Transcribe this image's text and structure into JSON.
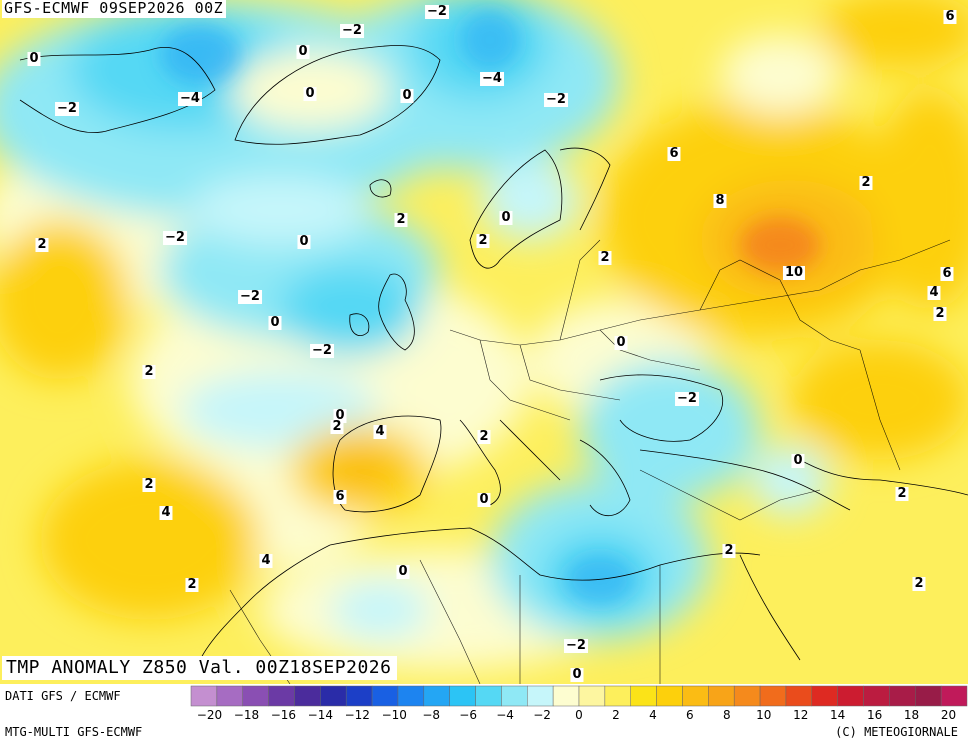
{
  "header": {
    "title_top": "GFS-ECMWF 09SEP2026 00Z",
    "title_bottom": "TMP ANOMALY Z850 Val. 00Z18SEP2026"
  },
  "footer": {
    "source": "DATI GFS / ECMWF",
    "model": "MTG-MULTI GFS-ECMWF",
    "copyright": "(C) METEOGIORNALE"
  },
  "legend": {
    "ticks": [
      "-20",
      "-18",
      "-16",
      "-14",
      "-12",
      "-10",
      "-8",
      "-6",
      "-4",
      "-2",
      "0",
      "2",
      "4",
      "6",
      "8",
      "10",
      "12",
      "14",
      "16",
      "18",
      "20"
    ],
    "colors": [
      "#c48fd0",
      "#a66cc2",
      "#8a4fb3",
      "#6b3aa5",
      "#4b2c9c",
      "#2a2ca8",
      "#1c3fc7",
      "#1960e3",
      "#1d84f0",
      "#24a6f4",
      "#2cc4f5",
      "#55d8f4",
      "#8fe8f5",
      "#c6f6fa",
      "#fdfdd0",
      "#fdf6a0",
      "#fdef5c",
      "#fbe318",
      "#fdd00c",
      "#fbbc14",
      "#f8a418",
      "#f58a1c",
      "#f16c1c",
      "#ea4c1c",
      "#de2a22",
      "#cc1c30",
      "#bb1c40",
      "#a81c48",
      "#981c48",
      "#c01a5a"
    ]
  },
  "labels": [
    {
      "id": "a1",
      "text": "-2"
    },
    {
      "id": "a2",
      "text": "-2"
    },
    {
      "id": "a3",
      "text": "6"
    },
    {
      "id": "a4",
      "text": "0"
    },
    {
      "id": "a5",
      "text": "0"
    },
    {
      "id": "a6",
      "text": "-4"
    },
    {
      "id": "a7",
      "text": "0"
    },
    {
      "id": "a8",
      "text": "-4"
    },
    {
      "id": "a9",
      "text": "-2"
    },
    {
      "id": "a10",
      "text": "-2"
    },
    {
      "id": "a11",
      "text": "0"
    },
    {
      "id": "a12",
      "text": "6"
    },
    {
      "id": "a13",
      "text": "2"
    },
    {
      "id": "a14",
      "text": "8"
    },
    {
      "id": "a15",
      "text": "2"
    },
    {
      "id": "a16",
      "text": "0"
    },
    {
      "id": "a17",
      "text": "-2"
    },
    {
      "id": "a18",
      "text": "2"
    },
    {
      "id": "a19",
      "text": "0"
    },
    {
      "id": "a20",
      "text": "2"
    },
    {
      "id": "a21",
      "text": "2"
    },
    {
      "id": "a22",
      "text": "10"
    },
    {
      "id": "a23",
      "text": "6"
    },
    {
      "id": "a24",
      "text": "4"
    },
    {
      "id": "a25",
      "text": "-2"
    },
    {
      "id": "a26",
      "text": "0"
    },
    {
      "id": "a27",
      "text": "2"
    },
    {
      "id": "a28",
      "text": "-2"
    },
    {
      "id": "a29",
      "text": "0"
    },
    {
      "id": "a30",
      "text": "2"
    },
    {
      "id": "a31",
      "text": "-2"
    },
    {
      "id": "a32",
      "text": "0"
    },
    {
      "id": "a33",
      "text": "2"
    },
    {
      "id": "a34",
      "text": "4"
    },
    {
      "id": "a35",
      "text": "2"
    },
    {
      "id": "a36",
      "text": "0"
    },
    {
      "id": "a37",
      "text": "2"
    },
    {
      "id": "a38",
      "text": "6"
    },
    {
      "id": "a39",
      "text": "0"
    },
    {
      "id": "a40",
      "text": "4"
    },
    {
      "id": "a41",
      "text": "2"
    },
    {
      "id": "a42",
      "text": "2"
    },
    {
      "id": "a43",
      "text": "4"
    },
    {
      "id": "a44",
      "text": "2"
    },
    {
      "id": "a45",
      "text": "0"
    },
    {
      "id": "a46",
      "text": "2"
    },
    {
      "id": "a47",
      "text": "-2"
    },
    {
      "id": "a48",
      "text": "0"
    }
  ]
}
